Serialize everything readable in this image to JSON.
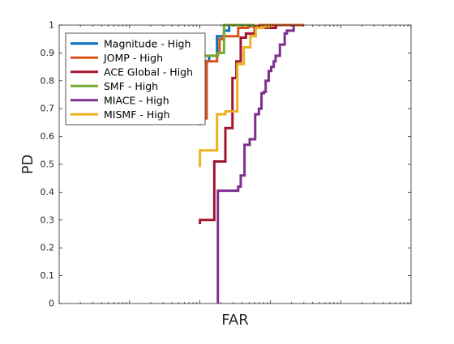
{
  "chart_data": {
    "type": "line",
    "title": "",
    "xlabel": "FAR",
    "ylabel": "PD",
    "xscale": "log",
    "xlim": [
      1e-05,
      1
    ],
    "ylim": [
      0,
      1
    ],
    "yticks": [
      0,
      0.1,
      0.2,
      0.3,
      0.4,
      0.5,
      0.6,
      0.7,
      0.8,
      0.9,
      1
    ],
    "ytick_labels": [
      "0",
      "0.1",
      "0.2",
      "0.3",
      "0.4",
      "0.5",
      "0.6",
      "0.7",
      "0.8",
      "0.9",
      "1"
    ],
    "xtick_labels_shown": false,
    "grid": false,
    "legend_position": "top-left",
    "series": [
      {
        "name": "Magnitude - High",
        "color": "#0072BD",
        "x": [
          0.001,
          0.001,
          0.00135,
          0.00135,
          0.00175,
          0.00175,
          0.0022,
          0.0022,
          0.0026,
          0.0026
        ],
        "y": [
          0.82,
          0.87,
          0.87,
          0.89,
          0.89,
          0.96,
          0.96,
          0.98,
          0.98,
          1.0
        ]
      },
      {
        "name": "JOMP - High",
        "color": "#D95319",
        "x": [
          0.001,
          0.001,
          0.00125,
          0.00125,
          0.00175,
          0.00175,
          0.0019,
          0.0019,
          0.0021,
          0.0021,
          0.0025,
          0.0025,
          0.0035,
          0.0035,
          0.0048,
          0.0048,
          0.007,
          0.007,
          0.03
        ],
        "y": [
          0.64,
          0.665,
          0.665,
          0.87,
          0.87,
          0.9,
          0.9,
          0.95,
          0.95,
          0.96,
          0.96,
          0.96,
          0.96,
          0.99,
          0.99,
          0.995,
          0.995,
          1.0,
          1.0
        ]
      },
      {
        "name": "ACE Global - High",
        "color": "#A2142F",
        "x": [
          0.001,
          0.001,
          0.0016,
          0.0016,
          0.0023,
          0.0023,
          0.0029,
          0.0029,
          0.0033,
          0.0033,
          0.0038,
          0.0038,
          0.0045,
          0.0045,
          0.006,
          0.006,
          0.012,
          0.012
        ],
        "y": [
          0.285,
          0.3,
          0.3,
          0.51,
          0.51,
          0.63,
          0.63,
          0.81,
          0.81,
          0.87,
          0.87,
          0.955,
          0.955,
          0.97,
          0.97,
          0.99,
          0.99,
          1.0
        ]
      },
      {
        "name": "SMF - High",
        "color": "#77AC30",
        "x": [
          0.001,
          0.001,
          0.0018,
          0.0018,
          0.0022,
          0.0022,
          0.006
        ],
        "y": [
          0.89,
          0.89,
          0.89,
          0.9,
          0.9,
          1.0,
          1.0
        ]
      },
      {
        "name": "MIACE - High",
        "color": "#7E2F8E",
        "x": [
          0.0018,
          0.0018,
          0.0035,
          0.0035,
          0.0038,
          0.0038,
          0.0043,
          0.0043,
          0.0051,
          0.0051,
          0.0061,
          0.0061,
          0.0069,
          0.0069,
          0.0075,
          0.0075,
          0.0081,
          0.0081,
          0.0086,
          0.0086,
          0.0095,
          0.0095,
          0.0103,
          0.0103,
          0.0112,
          0.0112,
          0.0119,
          0.0119,
          0.0137,
          0.0137,
          0.016,
          0.016,
          0.0172,
          0.0172,
          0.0215,
          0.0215
        ],
        "y": [
          0,
          0.405,
          0.405,
          0.42,
          0.42,
          0.46,
          0.46,
          0.57,
          0.57,
          0.59,
          0.59,
          0.68,
          0.68,
          0.7,
          0.7,
          0.755,
          0.755,
          0.76,
          0.76,
          0.8,
          0.8,
          0.835,
          0.835,
          0.85,
          0.85,
          0.87,
          0.87,
          0.89,
          0.89,
          0.93,
          0.93,
          0.97,
          0.97,
          0.98,
          0.98,
          1.0
        ]
      },
      {
        "name": "MISMF - High",
        "color": "#EDB120",
        "x": [
          0.001,
          0.001,
          0.00175,
          0.00175,
          0.0023,
          0.0023,
          0.0034,
          0.0034,
          0.0042,
          0.0042,
          0.0052,
          0.0052,
          0.0062,
          0.0062,
          0.008,
          0.008,
          0.01,
          0.01
        ],
        "y": [
          0.49,
          0.55,
          0.55,
          0.68,
          0.68,
          0.69,
          0.69,
          0.86,
          0.86,
          0.92,
          0.92,
          0.96,
          0.96,
          0.99,
          0.99,
          0.995,
          0.995,
          1.0
        ]
      }
    ]
  }
}
